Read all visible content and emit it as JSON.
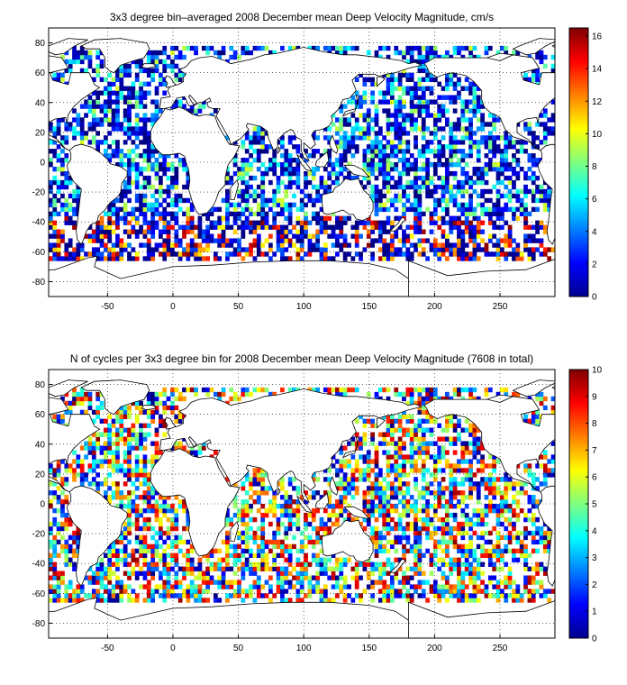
{
  "colors": {
    "land_outline": "#000000",
    "frame": "#000000",
    "grid": "#000000"
  },
  "chart_data": [
    {
      "type": "heatmap",
      "title": "3x3 degree bin–averaged 2008 December mean Deep Velocity Magnitude, cm/s",
      "xlabel": "",
      "ylabel": "",
      "xlim": [
        -95,
        292
      ],
      "ylim": [
        -90,
        90
      ],
      "xticks": [
        -50,
        0,
        50,
        100,
        150,
        200,
        250
      ],
      "yticks": [
        -80,
        -60,
        -40,
        -20,
        0,
        20,
        40,
        60,
        80
      ],
      "bin_size_deg": 3,
      "grid": true,
      "colormap": "jet",
      "colorbar": {
        "placement": "right",
        "range": [
          0,
          16.5
        ],
        "ticks": [
          0,
          2,
          4,
          6,
          8,
          10,
          12,
          14,
          16
        ]
      }
    },
    {
      "type": "heatmap",
      "title": "N of cycles per 3x3 degree bin for 2008 December mean Deep Velocity Magnitude (7608 in total)",
      "xlabel": "",
      "ylabel": "",
      "xlim": [
        -95,
        292
      ],
      "ylim": [
        -90,
        90
      ],
      "xticks": [
        -50,
        0,
        50,
        100,
        150,
        200,
        250
      ],
      "yticks": [
        -80,
        -60,
        -40,
        -20,
        0,
        20,
        40,
        60,
        80
      ],
      "bin_size_deg": 3,
      "grid": true,
      "colormap": "jet",
      "colorbar": {
        "placement": "right",
        "range": [
          0,
          10
        ],
        "ticks": [
          0,
          1,
          2,
          3,
          4,
          5,
          6,
          7,
          8,
          9,
          10
        ]
      }
    }
  ]
}
